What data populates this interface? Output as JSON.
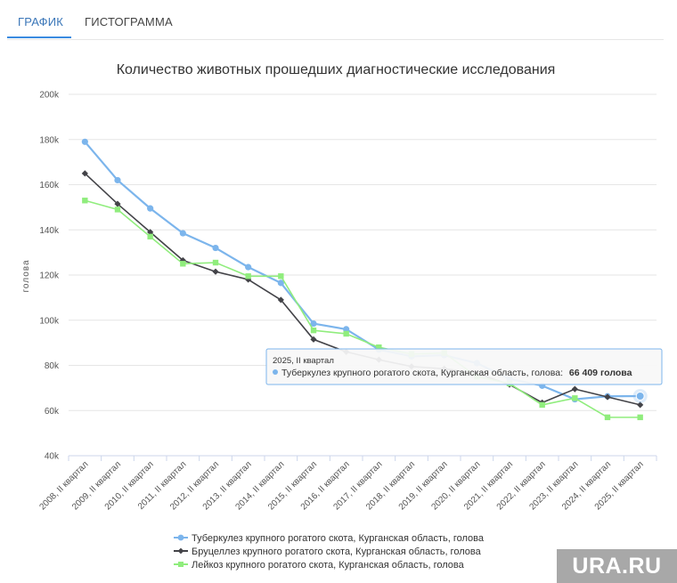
{
  "tabs": [
    {
      "label": "ГРАФИК"
    },
    {
      "label": "ГИСТОГРАММА"
    }
  ],
  "watermark": "URA.RU",
  "chart_data": {
    "type": "line",
    "title": "Количество животных прошедших диагностические исследования",
    "ylabel": "голова",
    "xlabel": "",
    "ylim": [
      40000,
      200000
    ],
    "y_ticks": [
      40000,
      60000,
      80000,
      100000,
      120000,
      140000,
      160000,
      180000,
      200000
    ],
    "y_tick_labels": [
      "40k",
      "60k",
      "80k",
      "100k",
      "120k",
      "140k",
      "160k",
      "180k",
      "200k"
    ],
    "grid": true,
    "legend_position": "bottom",
    "categories": [
      "2008, II квартал",
      "2009, II квартал",
      "2010, II квартал",
      "2011, II квартал",
      "2012, II квартал",
      "2013, II квартал",
      "2014, II квартал",
      "2015, II квартал",
      "2016, II квартал",
      "2017, II квартал",
      "2018, II квартал",
      "2019, II квартал",
      "2020, II квартал",
      "2021, II квартал",
      "2022, II квартал",
      "2023, II квартал",
      "2024, II квартал",
      "2025, II квартал"
    ],
    "series": [
      {
        "name": "Туберкулез крупного рогатого скота, Курганская область, голова",
        "color": "#7cb5ec",
        "marker": "circle",
        "values": [
          179000,
          162000,
          149500,
          138500,
          132000,
          123500,
          116500,
          98500,
          96000,
          87000,
          84000,
          84500,
          81000,
          74000,
          71000,
          65000,
          66300,
          66409
        ]
      },
      {
        "name": "Бруцеллез крупного рогатого скота, Курганская область, голова",
        "color": "#434348",
        "marker": "diamond",
        "values": [
          165000,
          151500,
          139000,
          126500,
          121500,
          118000,
          109000,
          91500,
          86000,
          82500,
          79500,
          78500,
          76500,
          71500,
          63500,
          69500,
          66000,
          62500
        ]
      },
      {
        "name": "Лейкоз крупного рогатого скота, Курганская область, голова",
        "color": "#90ed7d",
        "marker": "square",
        "values": [
          153000,
          149000,
          137000,
          125000,
          125500,
          119500,
          119500,
          95500,
          94000,
          88000,
          85000,
          85500,
          75000,
          72000,
          62500,
          65500,
          57000,
          57000
        ]
      }
    ],
    "tooltip": {
      "header": "2025, II квартал",
      "series_label": "Туберкулез крупного рогатого скота, Курганская область, голова:",
      "value_label": "66 409 голова"
    }
  }
}
